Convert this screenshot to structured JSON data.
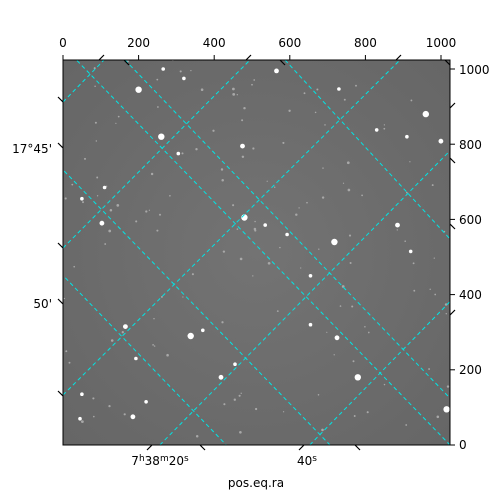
{
  "chart_data": {
    "type": "scatter",
    "title": "",
    "image": {
      "x_range": [
        0,
        1024
      ],
      "y_range": [
        0,
        1024
      ],
      "background": "#6e6e6e",
      "stars": [
        [
          200,
          945
        ],
        [
          730,
          947
        ],
        [
          830,
          838
        ],
        [
          475,
          795
        ],
        [
          305,
          775
        ],
        [
          960,
          880
        ],
        [
          1000,
          808
        ],
        [
          110,
          685
        ],
        [
          50,
          655
        ],
        [
          103,
          590
        ],
        [
          480,
          605
        ],
        [
          535,
          585
        ],
        [
          885,
          585
        ],
        [
          920,
          515
        ],
        [
          593,
          560
        ],
        [
          718,
          540
        ],
        [
          655,
          450
        ],
        [
          370,
          305
        ],
        [
          165,
          315
        ],
        [
          193,
          230
        ],
        [
          338,
          290
        ],
        [
          725,
          285
        ],
        [
          655,
          320
        ],
        [
          455,
          215
        ],
        [
          418,
          180
        ],
        [
          780,
          180
        ],
        [
          50,
          135
        ],
        [
          185,
          75
        ],
        [
          45,
          70
        ],
        [
          220,
          115
        ],
        [
          1015,
          95
        ],
        [
          265,
          1000
        ],
        [
          320,
          975
        ],
        [
          565,
          995
        ],
        [
          910,
          820
        ],
        [
          260,
          820
        ]
      ]
    },
    "xaxis_top": {
      "ticks": [
        0,
        200,
        400,
        600,
        800,
        1000
      ],
      "labels": [
        "0",
        "200",
        "400",
        "600",
        "800",
        "1000"
      ]
    },
    "yaxis_right": {
      "ticks": [
        0,
        200,
        400,
        600,
        800,
        1000
      ],
      "labels": [
        "0",
        "200",
        "400",
        "600",
        "800",
        "1000"
      ]
    },
    "xaxis_bottom": {
      "label": "pos.eq.ra",
      "tick_labels": [
        "7h38m20s",
        "40s"
      ]
    },
    "yaxis_left": {
      "tick_labels": [
        "17°45'",
        "50'"
      ]
    },
    "grid": {
      "on": true,
      "color": "#00e5e5",
      "style": "dashed"
    }
  },
  "labels": {
    "xlabel": "pos.eq.ra",
    "ra_main": "7",
    "ra_h": "h",
    "ra_mid": "38",
    "ra_m": "m",
    "ra_end": "20",
    "ra_s": "s",
    "ra2_main": "40",
    "ra2_s": "s",
    "dec1": "17°45'",
    "dec2": "50'",
    "top_ticks": [
      "0",
      "200",
      "400",
      "600",
      "800",
      "1000"
    ],
    "right_ticks": [
      "0",
      "200",
      "400",
      "600",
      "800",
      "1000"
    ]
  }
}
